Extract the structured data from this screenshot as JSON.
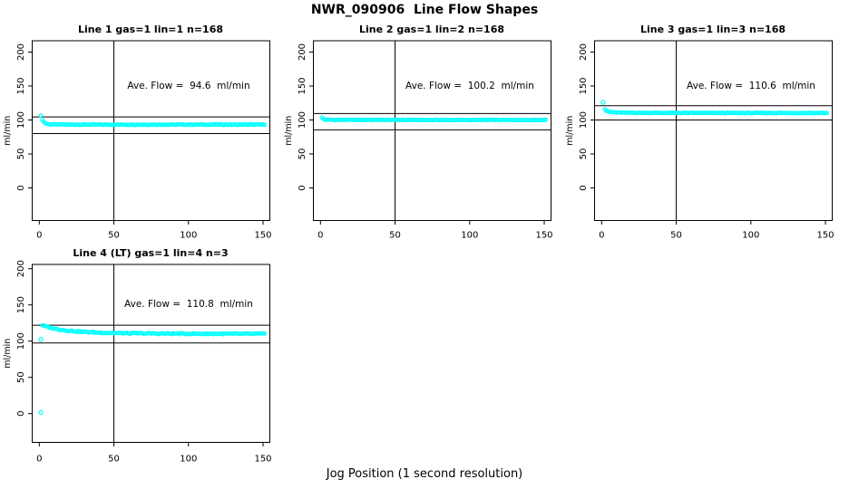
{
  "title": "NWR_090906  Line Flow Shapes",
  "xlabel": "Jog Position (1 second resolution)",
  "colors": {
    "point": "#00FFFF",
    "line": "#000000",
    "text": "#000000",
    "background": "#FFFFFF"
  },
  "chart_data": [
    {
      "type": "scatter",
      "title": "Line 1 gas=1 lin=1 n=168",
      "ave_flow": 94.6,
      "ave_flow_label": "Ave. Flow =  94.6  ml/min",
      "ylabel": "ml/min",
      "x_ticks": [
        0,
        50,
        100,
        150
      ],
      "y_ticks": [
        0,
        50,
        100,
        150,
        200
      ],
      "xlim": [
        0,
        154
      ],
      "ylim": [
        0,
        200
      ],
      "vline_x": 50,
      "hlines": [
        104.5,
        80.0
      ],
      "band_points": [
        [
          1,
          106
        ],
        [
          2,
          100.5
        ],
        [
          3,
          97.3
        ],
        [
          4,
          95.4
        ],
        [
          5,
          94.4
        ],
        [
          6,
          93.9
        ],
        [
          8,
          93.5
        ],
        [
          12,
          93.3
        ],
        [
          30,
          93.2
        ],
        [
          60,
          93.1
        ],
        [
          100,
          93.2
        ],
        [
          151,
          93.2
        ]
      ],
      "band_x_end": 151,
      "outlier_points": [],
      "jitter": 0.55
    },
    {
      "type": "scatter",
      "title": "Line 2 gas=1 lin=2 n=168",
      "ave_flow": 100.2,
      "ave_flow_label": "Ave. Flow =  100.2  ml/min",
      "ylabel": "ml/min",
      "x_ticks": [
        0,
        50,
        100,
        150
      ],
      "y_ticks": [
        0,
        50,
        100,
        150,
        200
      ],
      "xlim": [
        0,
        154
      ],
      "ylim": [
        0,
        200
      ],
      "vline_x": 50,
      "hlines": [
        109.5,
        85.5
      ],
      "band_points": [
        [
          1,
          103.5
        ],
        [
          2,
          101.2
        ],
        [
          3,
          100.6
        ],
        [
          5,
          100.3
        ],
        [
          10,
          100.15
        ],
        [
          40,
          100.1
        ],
        [
          80,
          100.0
        ],
        [
          151,
          100.0
        ]
      ],
      "band_x_end": 151,
      "outlier_points": [],
      "jitter": 0.45
    },
    {
      "type": "scatter",
      "title": "Line 3 gas=1 lin=3 n=168",
      "ave_flow": 110.6,
      "ave_flow_label": "Ave. Flow =  110.6  ml/min",
      "ylabel": "ml/min",
      "x_ticks": [
        0,
        50,
        100,
        150
      ],
      "y_ticks": [
        0,
        50,
        100,
        150,
        200
      ],
      "xlim": [
        0,
        154
      ],
      "ylim": [
        0,
        200
      ],
      "vline_x": 50,
      "hlines": [
        121.0,
        100.0
      ],
      "band_points": [
        [
          2,
          116
        ],
        [
          3,
          113.8
        ],
        [
          4,
          112.8
        ],
        [
          6,
          111.8
        ],
        [
          8,
          111.3
        ],
        [
          12,
          110.9
        ],
        [
          20,
          110.6
        ],
        [
          40,
          110.4
        ],
        [
          80,
          110.3
        ],
        [
          151,
          110.3
        ]
      ],
      "band_x_end": 151,
      "outlier_points": [
        [
          1,
          126
        ]
      ],
      "jitter": 0.45
    },
    {
      "type": "scatter",
      "title": "Line 4 (LT) gas=1 lin=4 n=3",
      "ave_flow": 110.8,
      "ave_flow_label": "Ave. Flow =  110.8  ml/min",
      "ylabel": "ml/min",
      "x_ticks": [
        0,
        50,
        100,
        150
      ],
      "y_ticks": [
        0,
        50,
        100,
        150,
        200
      ],
      "xlim": [
        0,
        154
      ],
      "ylim": [
        0,
        200
      ],
      "vline_x": 50,
      "hlines": [
        122.0,
        97.5
      ],
      "band_points": [
        [
          2,
          122
        ],
        [
          3,
          121
        ],
        [
          5,
          119.8
        ],
        [
          8,
          118.2
        ],
        [
          12,
          116.5
        ],
        [
          16,
          115.2
        ],
        [
          20,
          114.3
        ],
        [
          25,
          113.4
        ],
        [
          30,
          112.7
        ],
        [
          40,
          111.8
        ],
        [
          50,
          111.2
        ],
        [
          60,
          110.8
        ],
        [
          80,
          110.4
        ],
        [
          100,
          110.2
        ],
        [
          120,
          110.1
        ],
        [
          151,
          110.0
        ]
      ],
      "band_x_end": 151,
      "outlier_points": [
        [
          1,
          1.5
        ],
        [
          1,
          102.5
        ]
      ],
      "jitter": 0.8
    }
  ]
}
